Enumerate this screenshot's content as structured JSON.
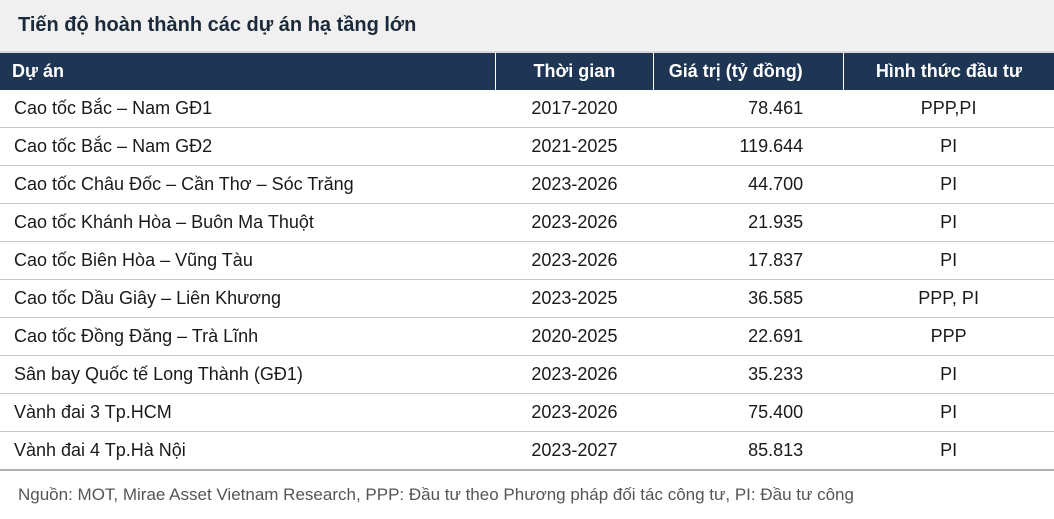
{
  "title": "Tiến độ hoàn thành các dự án hạ tầng lớn",
  "headers": {
    "project": "Dự án",
    "time": "Thời gian",
    "value": "Giá trị (tỷ đồng)",
    "type": "Hình thức đầu tư"
  },
  "rows": [
    {
      "project": "Cao tốc Bắc – Nam GĐ1",
      "time": "2017-2020",
      "value": "78.461",
      "type": "PPP,PI"
    },
    {
      "project": "Cao tốc Bắc – Nam GĐ2",
      "time": "2021-2025",
      "value": "119.644",
      "type": "PI"
    },
    {
      "project": "Cao tốc Châu Đốc – Cần Thơ – Sóc Trăng",
      "time": "2023-2026",
      "value": "44.700",
      "type": "PI"
    },
    {
      "project": "Cao tốc Khánh Hòa – Buôn Ma Thuột",
      "time": "2023-2026",
      "value": "21.935",
      "type": "PI"
    },
    {
      "project": "Cao tốc Biên Hòa – Vũng Tàu",
      "time": "2023-2026",
      "value": "17.837",
      "type": "PI"
    },
    {
      "project": "Cao tốc Dầu Giây – Liên Khương",
      "time": "2023-2025",
      "value": "36.585",
      "type": "PPP, PI"
    },
    {
      "project": "Cao tốc Đồng Đăng – Trà Lĩnh",
      "time": "2020-2025",
      "value": "22.691",
      "type": "PPP"
    },
    {
      "project": "Sân bay Quốc tế Long Thành (GĐ1)",
      "time": "2023-2026",
      "value": "35.233",
      "type": "PI"
    },
    {
      "project": "Vành đai 3 Tp.HCM",
      "time": "2023-2026",
      "value": "75.400",
      "type": "PI"
    },
    {
      "project": "Vành đai 4 Tp.Hà Nội",
      "time": "2023-2027",
      "value": "85.813",
      "type": "PI"
    }
  ],
  "footnote": "Nguồn: MOT, Mirae Asset Vietnam Research, PPP: Đầu tư theo Phương pháp đối tác công tư, PI: Đầu tư công",
  "styling": {
    "header_bg": "#1e3553",
    "header_text": "#ffffff",
    "title_bg": "#f0f0f0",
    "title_text": "#1a2a3a",
    "row_border": "#c8c8c8",
    "footnote_color": "#555555",
    "body_text": "#1a1a1a",
    "font_size_title": 20,
    "font_size_body": 18,
    "font_size_footnote": 17,
    "col_widths_pct": [
      47,
      15,
      18,
      20
    ],
    "col_align": [
      "left",
      "center",
      "right",
      "center"
    ]
  }
}
